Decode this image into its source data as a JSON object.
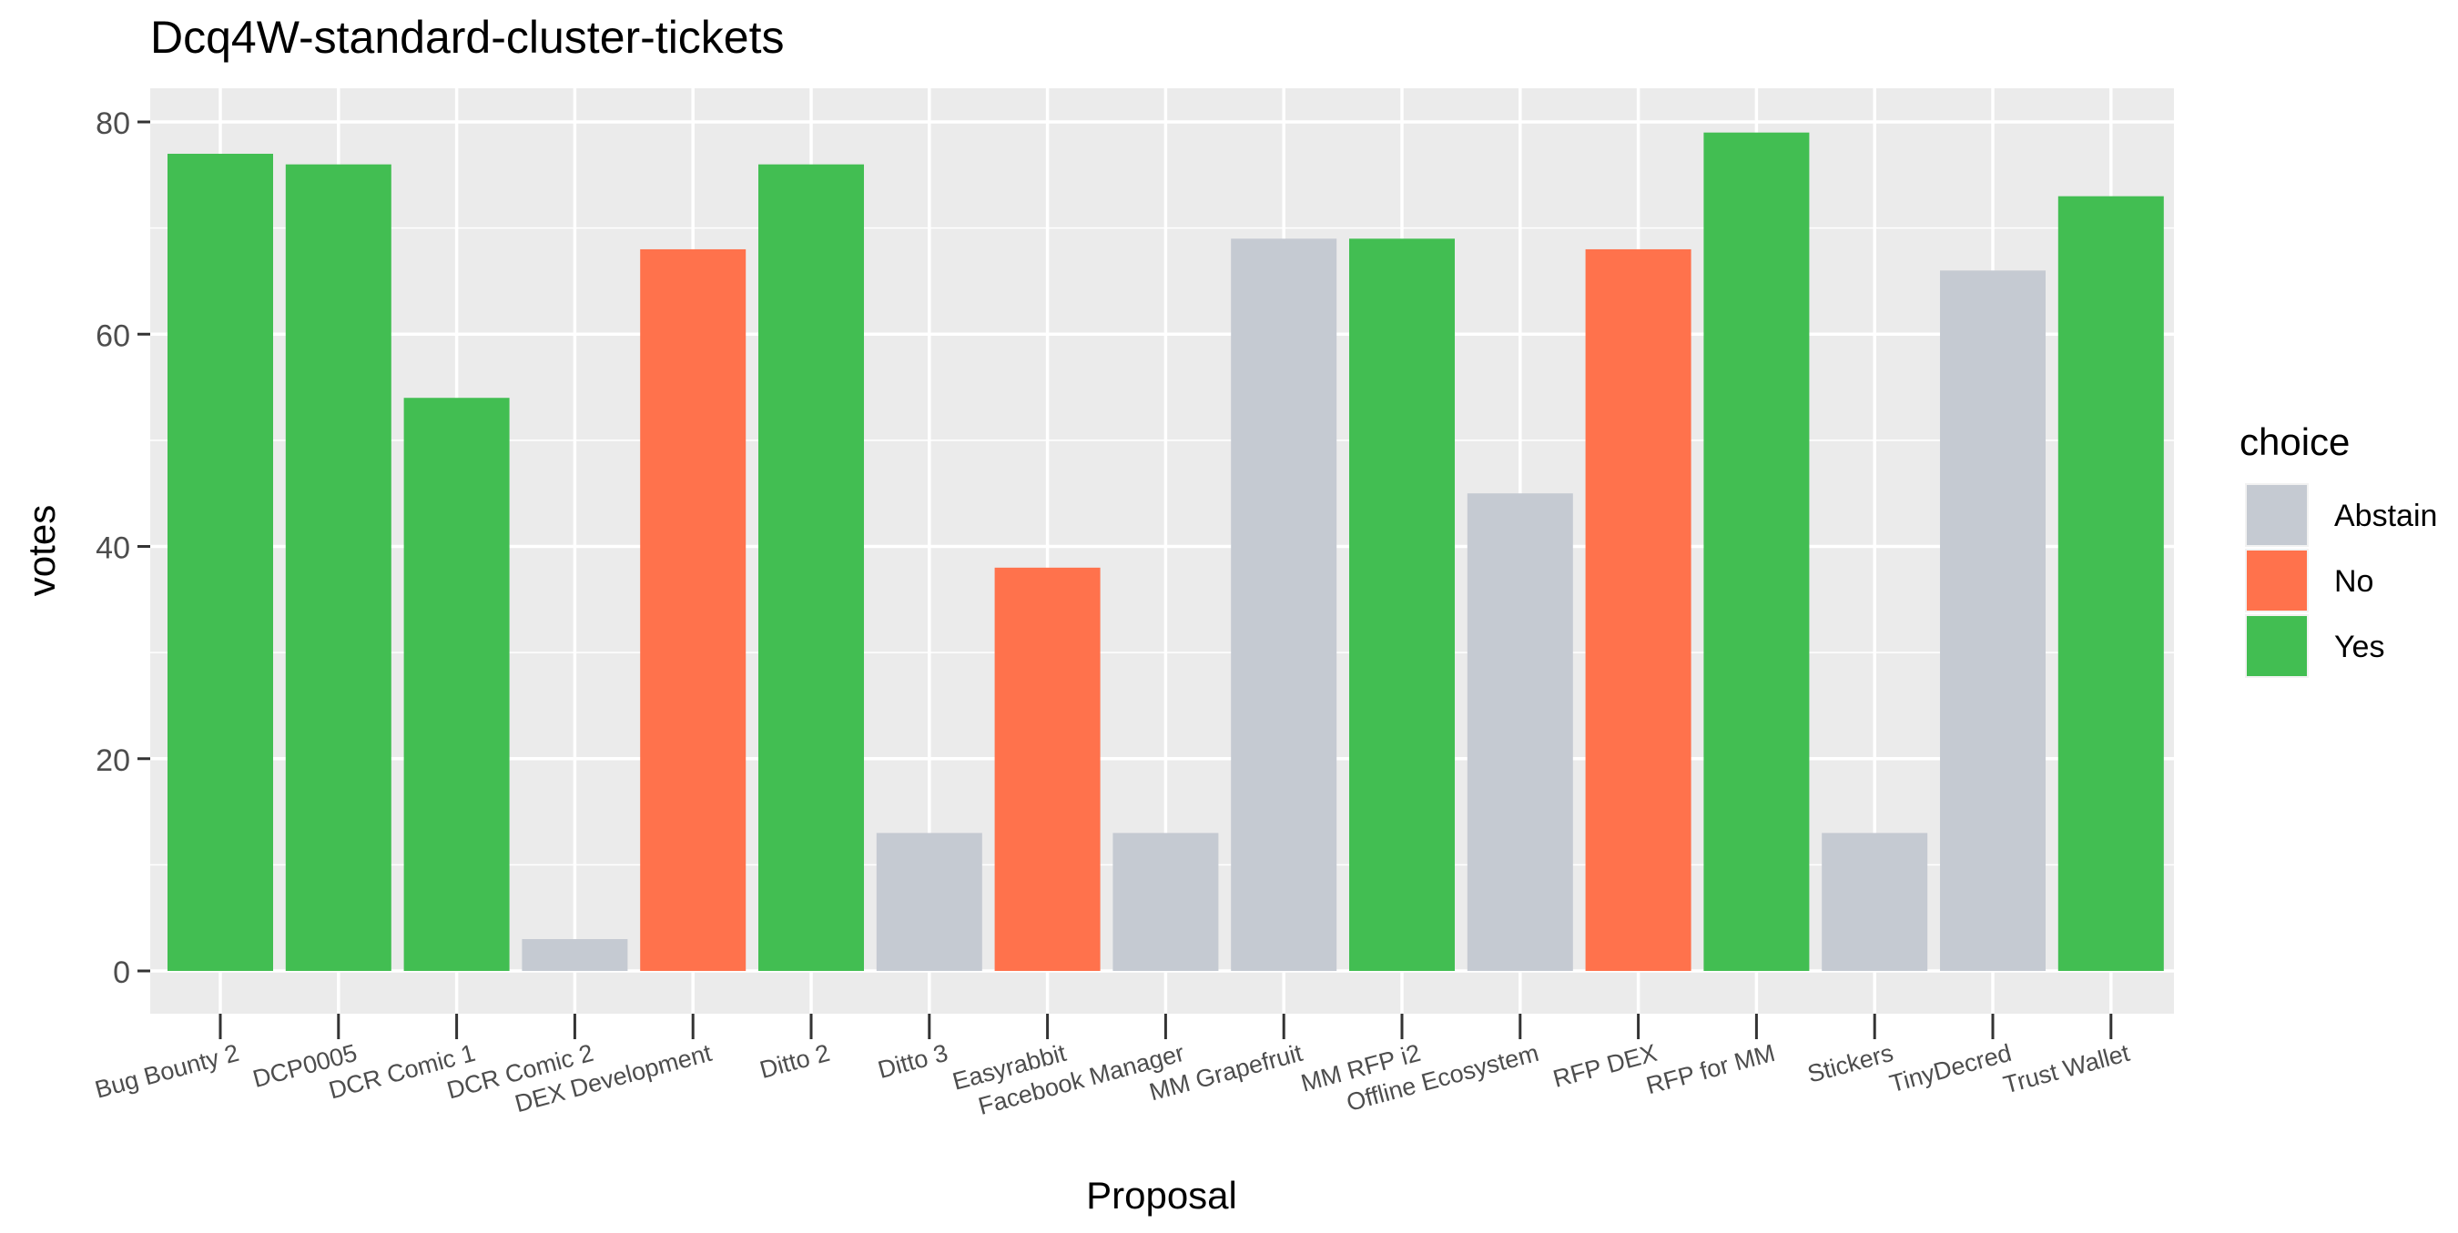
{
  "chart_data": {
    "type": "bar",
    "title": "Dcq4W-standard-cluster-tickets",
    "xlabel": "Proposal",
    "ylabel": "votes",
    "ylim": [
      0,
      82
    ],
    "yticks": [
      0,
      20,
      40,
      60,
      80
    ],
    "grid": true,
    "legend_title": "choice",
    "legend_position": "right",
    "categories": [
      "Bug Bounty 2",
      "DCP0005",
      "DCR Comic 1",
      "DCR Comic 2",
      "DEX Development",
      "Ditto 2",
      "Ditto 3",
      "Easyrabbit",
      "Facebook Manager",
      "MM Grapefruit",
      "MM RFP i2",
      "Offline Ecosystem",
      "RFP DEX",
      "RFP for MM",
      "Stickers",
      "TinyDecred",
      "Trust Wallet"
    ],
    "values": [
      77,
      76,
      54,
      3,
      68,
      76,
      13,
      38,
      13,
      69,
      69,
      45,
      68,
      79,
      13,
      66,
      73
    ],
    "choices": [
      "Yes",
      "Yes",
      "Yes",
      "Abstain",
      "No",
      "Yes",
      "Abstain",
      "No",
      "Abstain",
      "Abstain",
      "Yes",
      "Abstain",
      "No",
      "Yes",
      "Abstain",
      "Abstain",
      "Yes"
    ],
    "legend": [
      {
        "name": "Abstain",
        "color": "#C5CAD2"
      },
      {
        "name": "No",
        "color": "#FF724C"
      },
      {
        "name": "Yes",
        "color": "#42BE52"
      }
    ],
    "colors": {
      "panel": "#EBEBEB",
      "grid": "#FFFFFF",
      "axis_text": "#4D4D4D",
      "tick": "#333333"
    }
  }
}
